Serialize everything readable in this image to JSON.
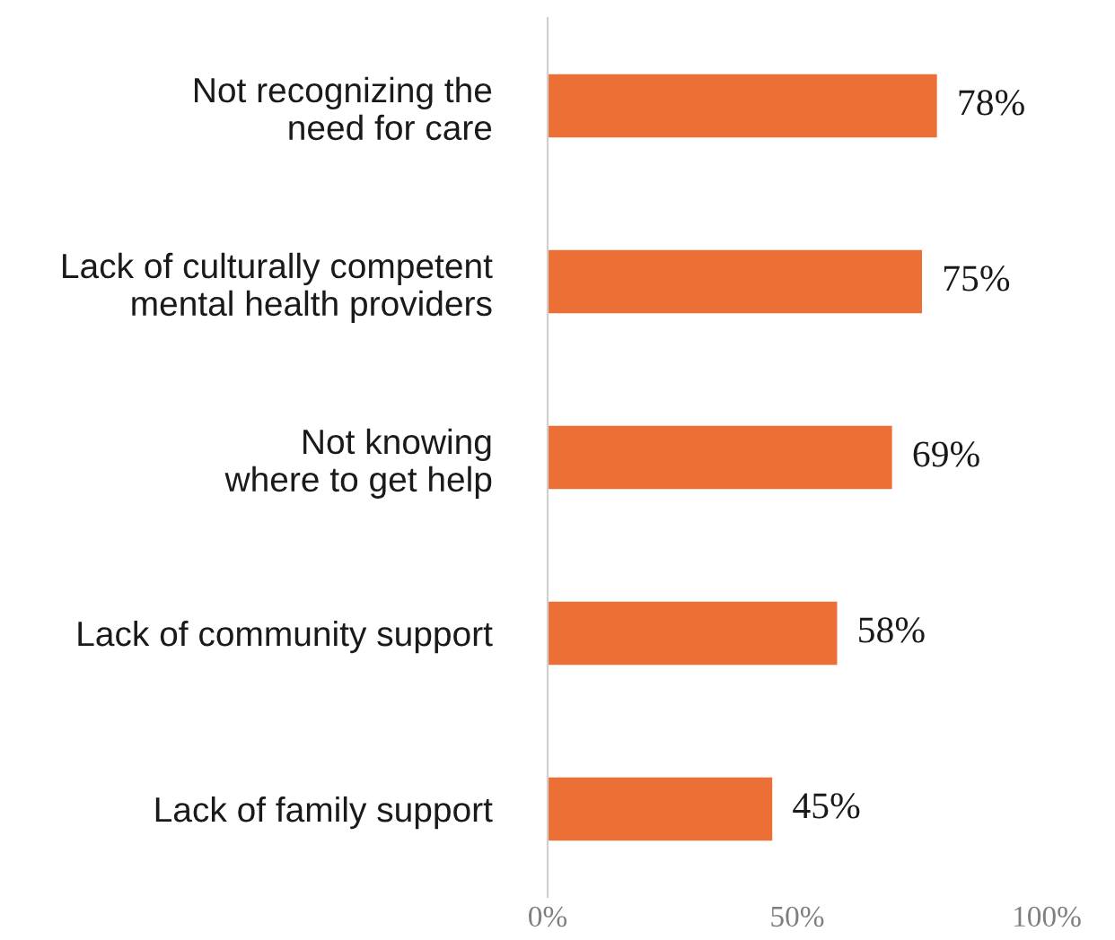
{
  "chart_data": {
    "type": "bar",
    "orientation": "horizontal",
    "categories": [
      "Not recognizing the\nneed for care",
      "Lack of culturally competent\nmental health providers",
      "Not knowing\nwhere to get help",
      "Lack of community support",
      "Lack of family support"
    ],
    "values": [
      78,
      75,
      69,
      58,
      45
    ],
    "value_labels": [
      "78%",
      "75%",
      "69%",
      "58%",
      "45%"
    ],
    "color": "#ec7035",
    "xlim": [
      0,
      100
    ],
    "xticks": [
      {
        "value": 0,
        "label": "0%"
      },
      {
        "value": 50,
        "label": "50%"
      },
      {
        "value": 100,
        "label": "100%"
      }
    ],
    "grid": false,
    "legend": false
  }
}
